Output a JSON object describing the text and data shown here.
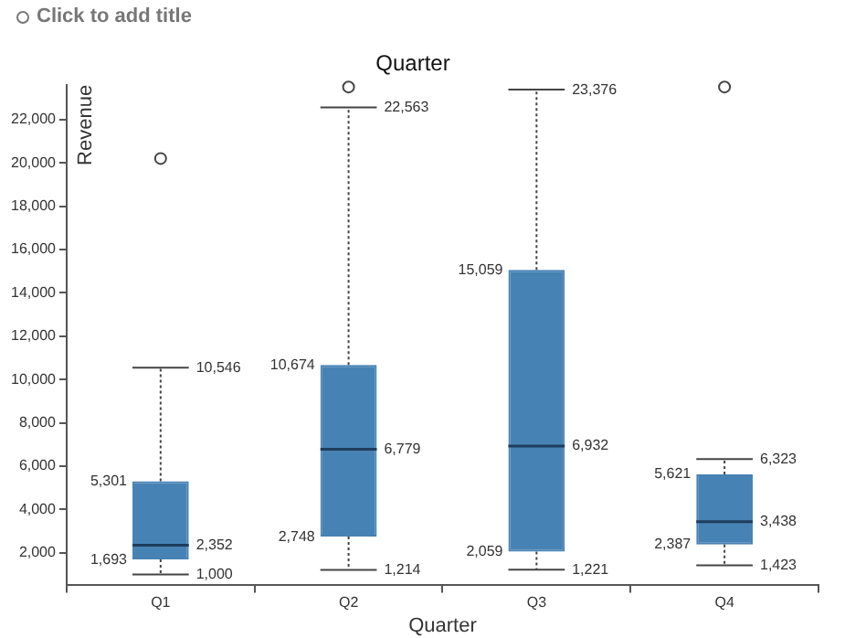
{
  "chart_data": {
    "type": "box",
    "title": "Quarter",
    "xlabel": "Quarter",
    "ylabel": "Revenue",
    "annotations": [
      "Click to add title"
    ],
    "categories": [
      "Q1",
      "Q2",
      "Q3",
      "Q4"
    ],
    "series": [
      {
        "color": "#4682b4",
        "boxes": [
          {
            "low": 1000,
            "q1": 1693,
            "median": 2352,
            "q3": 5301,
            "high": 10546,
            "outliers": [
              20200
            ]
          },
          {
            "low": 1214,
            "q1": 2748,
            "median": 6779,
            "q3": 10674,
            "high": 22563,
            "outliers": [
              23500
            ]
          },
          {
            "low": 1221,
            "q1": 2059,
            "median": 6932,
            "q3": 15059,
            "high": 23376
          },
          {
            "low": 1423,
            "q1": 2387,
            "median": 3438,
            "q3": 5621,
            "high": 6323,
            "outliers": [
              23500
            ]
          }
        ],
        "value_labels": [
          [
            "1,000",
            "1,693",
            "2,352",
            "5,301",
            "10,546"
          ],
          [
            "1,214",
            "2,748",
            "6,779",
            "10,674",
            "22,563"
          ],
          [
            "1,221",
            "2,059",
            "6,932",
            "15,059",
            "23,376"
          ],
          [
            "1,423",
            "2,387",
            "3,438",
            "5,621",
            "6,323"
          ]
        ]
      }
    ],
    "ylim": [
      500,
      23600
    ],
    "yticks": [
      {
        "value": 2000,
        "label": "2,000"
      },
      {
        "value": 4000,
        "label": "4,000"
      },
      {
        "value": 6000,
        "label": "6,000"
      },
      {
        "value": 8000,
        "label": "8,000"
      },
      {
        "value": 10000,
        "label": "10,000"
      },
      {
        "value": 12000,
        "label": "12,000"
      },
      {
        "value": 14000,
        "label": "14,000"
      },
      {
        "value": 16000,
        "label": "16,000"
      },
      {
        "value": 18000,
        "label": "18,000"
      },
      {
        "value": 20000,
        "label": "20,000"
      },
      {
        "value": 22000,
        "label": "22,000"
      }
    ]
  }
}
